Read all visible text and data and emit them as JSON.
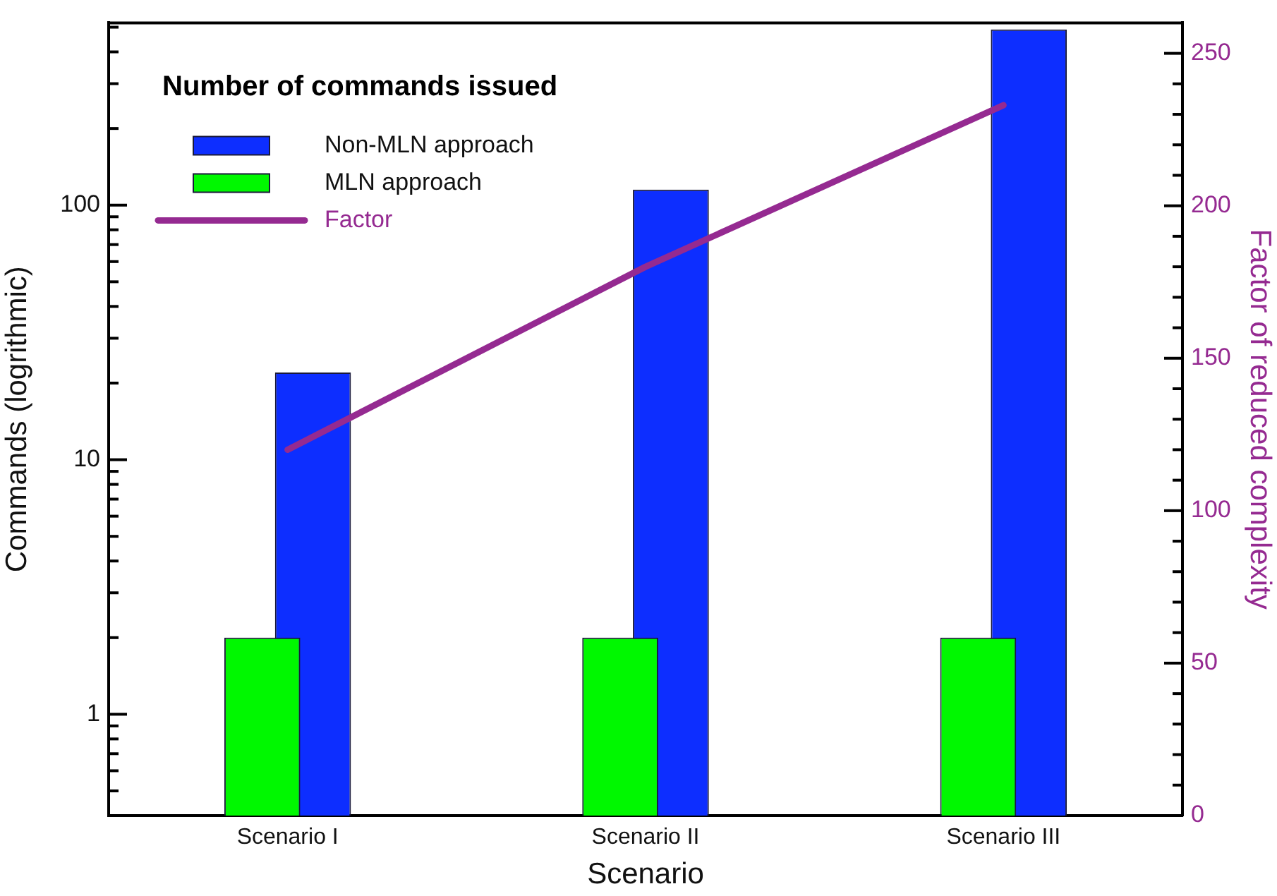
{
  "chart_data": {
    "type": "bar",
    "legend_title": "Number of commands issued",
    "xlabel": "Scenario",
    "ylabel": "Commands (logrithmic)",
    "y2label": "Factor of reduced complexity",
    "categories": [
      "Scenario I",
      "Scenario II",
      "Scenario III"
    ],
    "series": [
      {
        "name": "Non-MLN approach",
        "color": "#0d2eff",
        "values": [
          22,
          115,
          490
        ]
      },
      {
        "name": "MLN approach",
        "color": "#00f800",
        "values": [
          2,
          2,
          2
        ]
      },
      {
        "name": "Factor",
        "type": "line",
        "axis": "y2",
        "color": "#952a91",
        "values": [
          120,
          180,
          233
        ]
      }
    ],
    "log": "y",
    "ylim": [
      0.4,
      520
    ],
    "yticks": [
      {
        "value": 0.5,
        "label": null
      },
      {
        "value": 0.6,
        "label": null
      },
      {
        "value": 0.7,
        "label": null
      },
      {
        "value": 0.8,
        "label": null
      },
      {
        "value": 0.9,
        "label": null
      },
      1,
      {
        "value": 2,
        "label": null
      },
      {
        "value": 3,
        "label": null
      },
      {
        "value": 4,
        "label": null
      },
      {
        "value": 5,
        "label": null
      },
      {
        "value": 6,
        "label": null
      },
      {
        "value": 7,
        "label": null
      },
      {
        "value": 8,
        "label": null
      },
      {
        "value": 9,
        "label": null
      },
      10,
      {
        "value": 20,
        "label": null
      },
      {
        "value": 30,
        "label": null
      },
      {
        "value": 40,
        "label": null
      },
      {
        "value": 50,
        "label": null
      },
      {
        "value": 60,
        "label": null
      },
      {
        "value": 70,
        "label": null
      },
      {
        "value": 80,
        "label": null
      },
      {
        "value": 90,
        "label": null
      },
      100,
      {
        "value": 200,
        "label": null
      },
      {
        "value": 300,
        "label": null
      },
      {
        "value": 400,
        "label": null
      },
      {
        "value": 500,
        "label": null
      }
    ],
    "y2lim": [
      0,
      260
    ],
    "y2ticks": [
      0,
      {
        "value": 10,
        "label": null
      },
      {
        "value": 20,
        "label": null
      },
      {
        "value": 30,
        "label": null
      },
      {
        "value": 40,
        "label": null
      },
      50,
      {
        "value": 60,
        "label": null
      },
      {
        "value": 70,
        "label": null
      },
      {
        "value": 80,
        "label": null
      },
      {
        "value": 90,
        "label": null
      },
      100,
      {
        "value": 110,
        "label": null
      },
      {
        "value": 120,
        "label": null
      },
      {
        "value": 130,
        "label": null
      },
      {
        "value": 140,
        "label": null
      },
      150,
      {
        "value": 160,
        "label": null
      },
      {
        "value": 170,
        "label": null
      },
      {
        "value": 180,
        "label": null
      },
      {
        "value": 190,
        "label": null
      },
      200,
      {
        "value": 210,
        "label": null
      },
      {
        "value": 220,
        "label": null
      },
      {
        "value": 230,
        "label": null
      },
      {
        "value": 240,
        "label": null
      },
      250
    ],
    "grid": false,
    "legend": "top left"
  }
}
